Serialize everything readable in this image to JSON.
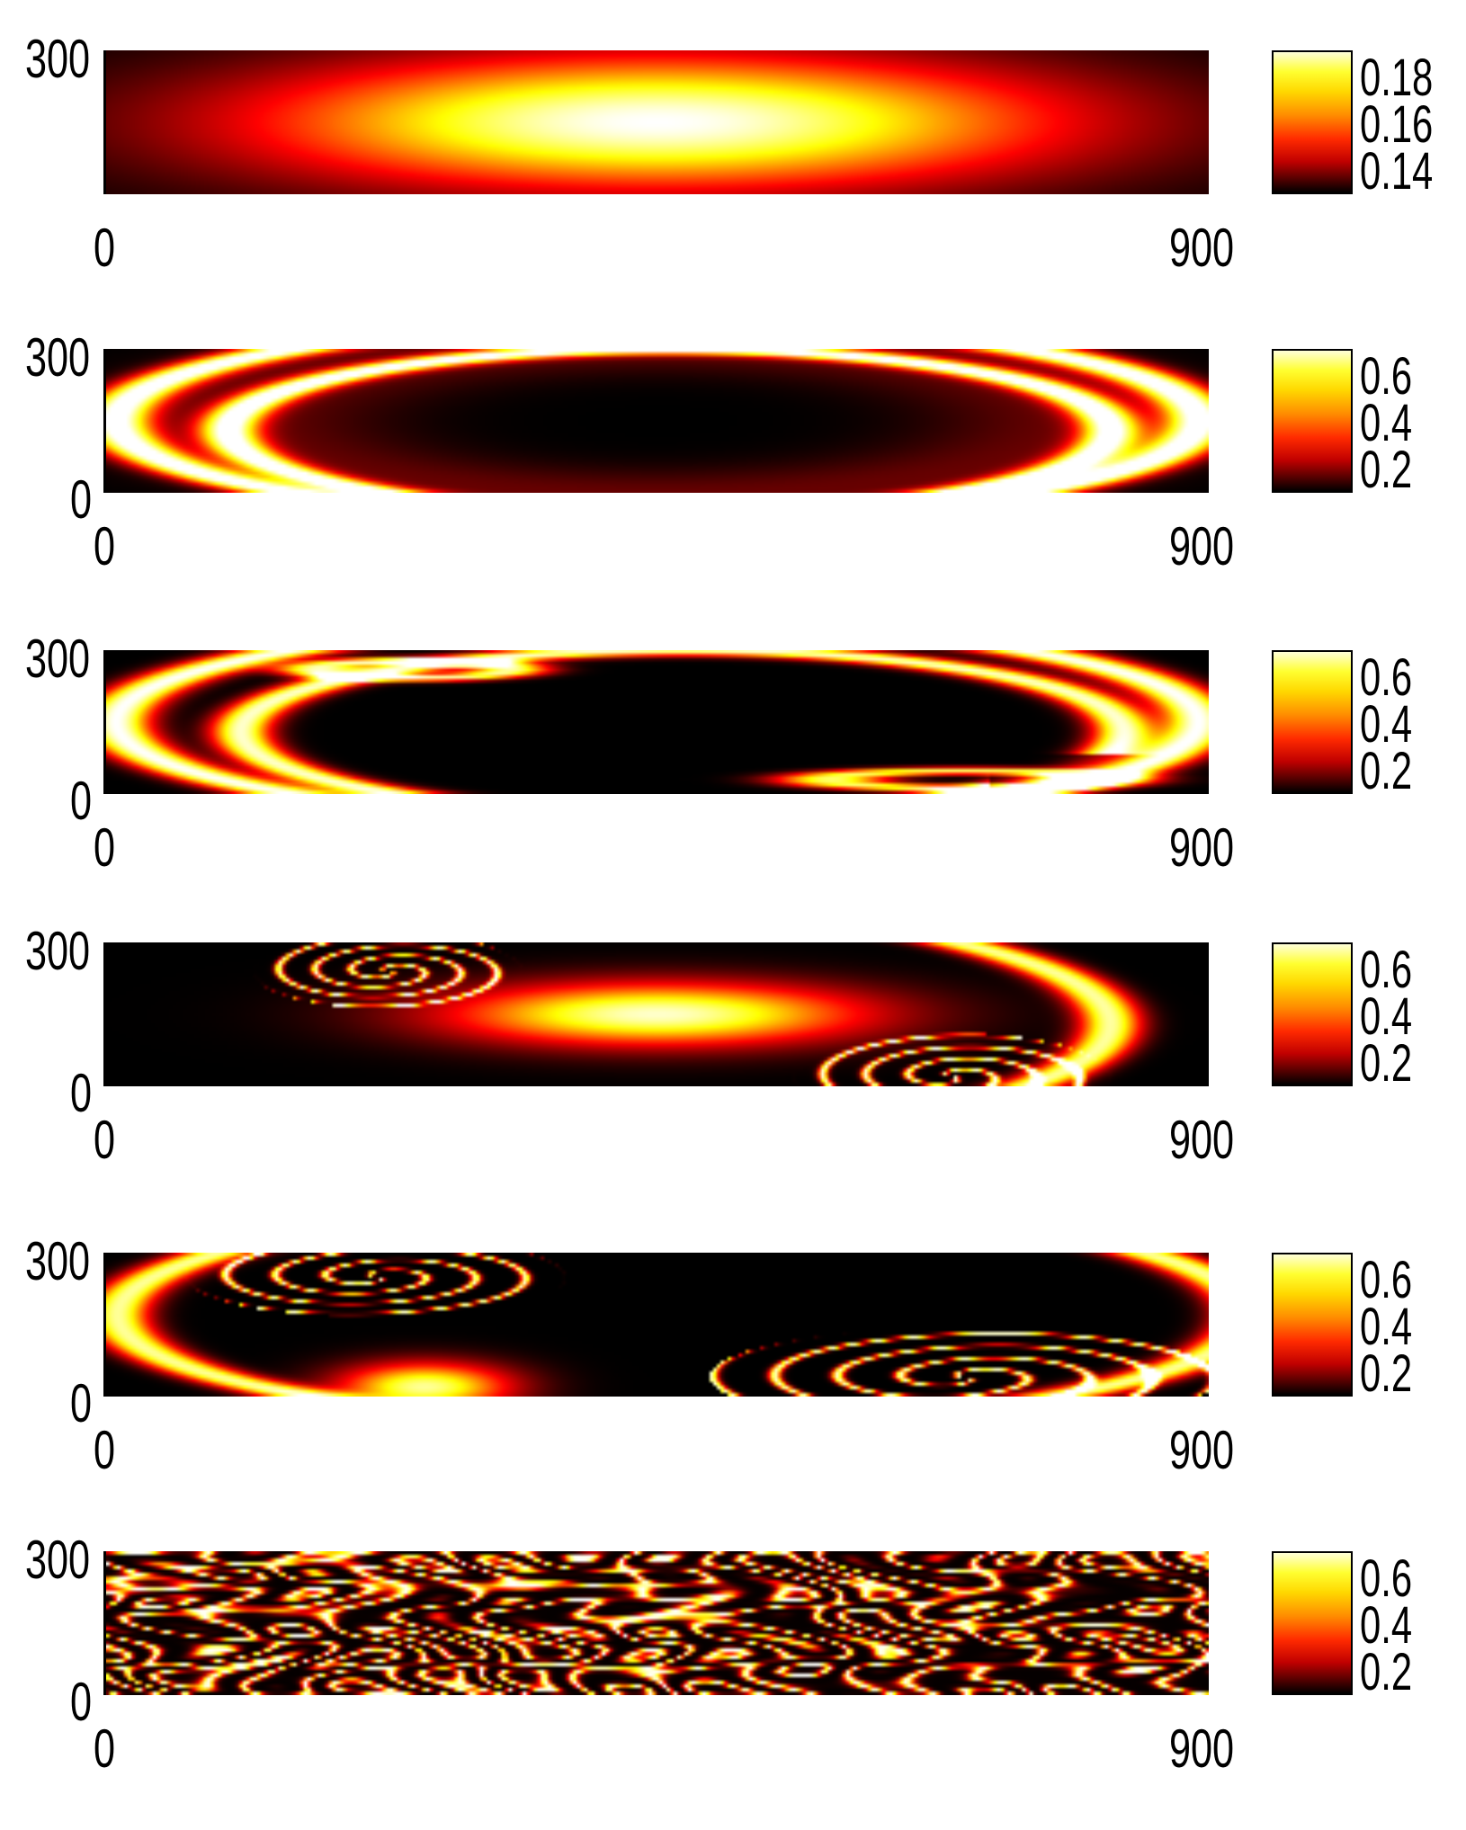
{
  "chart_data": [
    {
      "type": "heatmap",
      "pattern": "gaussian",
      "xlim": [
        0,
        900
      ],
      "ylim": [
        0,
        300
      ],
      "x_ticks": [
        "0",
        "900"
      ],
      "y_ticks": [
        "300"
      ],
      "colormap": "hot",
      "clim": [
        0.135,
        0.185
      ],
      "colorbar_ticks": [
        "0.18",
        "0.16",
        "0.14"
      ]
    },
    {
      "type": "heatmap",
      "pattern": "rings",
      "xlim": [
        0,
        900
      ],
      "ylim": [
        0,
        300
      ],
      "x_ticks": [
        "0",
        "900"
      ],
      "y_ticks": [
        "300",
        "0"
      ],
      "colormap": "hot",
      "clim": [
        0.1,
        0.65
      ],
      "colorbar_ticks": [
        "0.6",
        "0.4",
        "0.2"
      ]
    },
    {
      "type": "heatmap",
      "pattern": "rings_broken",
      "xlim": [
        0,
        900
      ],
      "ylim": [
        0,
        300
      ],
      "x_ticks": [
        "0",
        "900"
      ],
      "y_ticks": [
        "300",
        "0"
      ],
      "colormap": "hot",
      "clim": [
        0.1,
        0.65
      ],
      "colorbar_ticks": [
        "0.6",
        "0.4",
        "0.2"
      ]
    },
    {
      "type": "heatmap",
      "pattern": "spirals",
      "xlim": [
        0,
        900
      ],
      "ylim": [
        0,
        300
      ],
      "x_ticks": [
        "0",
        "900"
      ],
      "y_ticks": [
        "300",
        "0"
      ],
      "colormap": "hot",
      "clim": [
        0.1,
        0.65
      ],
      "colorbar_ticks": [
        "0.6",
        "0.4",
        "0.2"
      ]
    },
    {
      "type": "heatmap",
      "pattern": "spirals_late",
      "xlim": [
        0,
        900
      ],
      "ylim": [
        0,
        300
      ],
      "x_ticks": [
        "0",
        "900"
      ],
      "y_ticks": [
        "300",
        "0"
      ],
      "colormap": "hot",
      "clim": [
        0.1,
        0.65
      ],
      "colorbar_ticks": [
        "0.6",
        "0.4",
        "0.2"
      ]
    },
    {
      "type": "heatmap",
      "pattern": "turbulence",
      "xlim": [
        0,
        900
      ],
      "ylim": [
        0,
        300
      ],
      "x_ticks": [
        "0",
        "900"
      ],
      "y_ticks": [
        "300",
        "0"
      ],
      "colormap": "hot",
      "clim": [
        0.1,
        0.65
      ],
      "colorbar_ticks": [
        "0.6",
        "0.4",
        "0.2"
      ]
    }
  ]
}
